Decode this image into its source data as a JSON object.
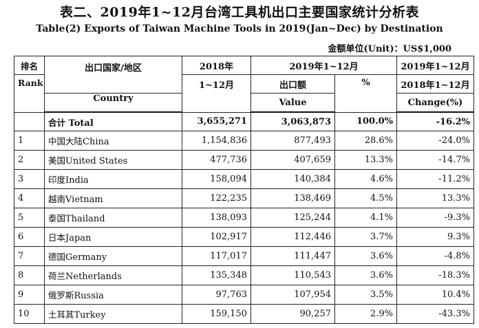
{
  "title_cn": "表二、2019年1~12月台湾工具机出口主要国家统计分析表",
  "title_en": "Table(2) Exports of Taiwan  Machine Tools in 2019(Jan~Dec) by Destination",
  "unit_note": "金额单位(Unit)：US$1,000",
  "headers": {
    "rank_cn": "排名",
    "rank_en": "Rank",
    "country_cn": "出口国家/地区",
    "country_en": "Country",
    "y2018_line1": "2018年",
    "y2018_line2": "1~12月",
    "y2019": "2019年1~12月",
    "value_cn": "出口额",
    "value_en": "Value",
    "percent": "%",
    "change_line1": "2019年1~12月",
    "change_line2": "2018年1~12月",
    "change_line3": "Change(%)"
  },
  "total": {
    "label_cn": "合计",
    "label_en": "Total",
    "y2018": "3,655,271",
    "y2019": "3,063,873",
    "share": "100.0%",
    "change": "-16.2%"
  },
  "rows": [
    {
      "rank": "1",
      "name_cn": "中国大陆",
      "name_en": "China",
      "y2018": "1,154,836",
      "y2019": "877,493",
      "share": "28.6%",
      "change": "-24.0%"
    },
    {
      "rank": "2",
      "name_cn": "美国",
      "name_en": "United States",
      "y2018": "477,736",
      "y2019": "407,659",
      "share": "13.3%",
      "change": "-14.7%"
    },
    {
      "rank": "3",
      "name_cn": "印度",
      "name_en": "India",
      "y2018": "158,094",
      "y2019": "140,384",
      "share": "4.6%",
      "change": "-11.2%"
    },
    {
      "rank": "4",
      "name_cn": "越南",
      "name_en": "Vietnam",
      "y2018": "122,235",
      "y2019": "138,469",
      "share": "4.5%",
      "change": "13.3%"
    },
    {
      "rank": "5",
      "name_cn": "泰国",
      "name_en": "Thailand",
      "y2018": "138,093",
      "y2019": "125,244",
      "share": "4.1%",
      "change": "-9.3%"
    },
    {
      "rank": "6",
      "name_cn": "日本",
      "name_en": "Japan",
      "y2018": "102,917",
      "y2019": "112,446",
      "share": "3.7%",
      "change": "9.3%"
    },
    {
      "rank": "7",
      "name_cn": "德国",
      "name_en": "Germany",
      "y2018": "117,017",
      "y2019": "111,447",
      "share": "3.6%",
      "change": "-4.8%"
    },
    {
      "rank": "8",
      "name_cn": "荷兰",
      "name_en": "Netherlands",
      "y2018": "135,348",
      "y2019": "110,543",
      "share": "3.6%",
      "change": "-18.3%"
    },
    {
      "rank": "9",
      "name_cn": "俄罗斯",
      "name_en": "Russia",
      "y2018": "97,763",
      "y2019": "107,954",
      "share": "3.5%",
      "change": "10.4%"
    },
    {
      "rank": "10",
      "name_cn": "土耳其",
      "name_en": "Turkey",
      "y2018": "159,150",
      "y2019": "90,257",
      "share": "2.9%",
      "change": "-43.3%"
    }
  ]
}
